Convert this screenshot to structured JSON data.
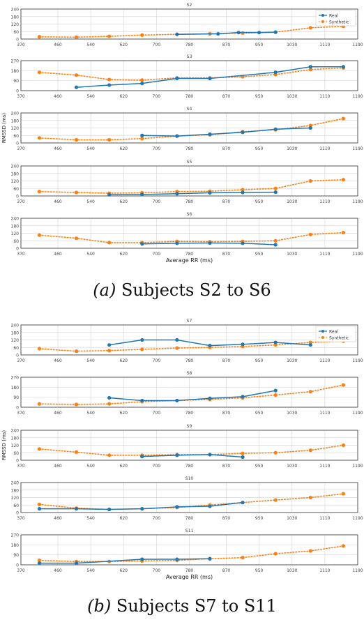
{
  "captions": {
    "a_label": "(a)",
    "a_text": "Subjects S2 to S6",
    "b_label": "(b)",
    "b_text": "Subjects S7 to S11"
  },
  "colors": {
    "real": "#1f77b4",
    "synthetic": "#ff7f0e",
    "grid": "#d9d9d9",
    "axis": "#333333"
  },
  "chart_data": [
    {
      "type": "line",
      "title": "S2",
      "xlabel": "",
      "ylabel": "",
      "xlim": [
        370,
        1190
      ],
      "ylim": [
        0,
        240
      ],
      "xticks": [
        370,
        460,
        540,
        620,
        700,
        780,
        870,
        950,
        1030,
        1110,
        1190
      ],
      "yticks": [
        0,
        60,
        120,
        180,
        240
      ],
      "grid": true,
      "legend": "top-right",
      "series": [
        {
          "name": "Real",
          "style": "solid",
          "x": [
            750,
            850,
            900,
            950,
            990
          ],
          "y": [
            38,
            42,
            52,
            52,
            55
          ]
        },
        {
          "name": "Synthetic",
          "style": "dotted",
          "x": [
            415,
            505,
            585,
            665,
            750,
            830,
            910,
            990,
            1075,
            1155
          ],
          "y": [
            18,
            15,
            22,
            32,
            38,
            42,
            48,
            55,
            90,
            102
          ]
        }
      ]
    },
    {
      "type": "line",
      "title": "S3",
      "xlabel": "",
      "ylabel": "",
      "xlim": [
        370,
        1190
      ],
      "ylim": [
        0,
        270
      ],
      "xticks": [
        370,
        460,
        540,
        620,
        700,
        780,
        870,
        950,
        1030,
        1110,
        1190
      ],
      "yticks": [
        0,
        90,
        180,
        270
      ],
      "grid": true,
      "legend": "",
      "series": [
        {
          "name": "Real",
          "style": "solid",
          "x": [
            505,
            585,
            665,
            750,
            830,
            990,
            1075,
            1155
          ],
          "y": [
            30,
            50,
            65,
            110,
            110,
            165,
            215,
            215
          ]
        },
        {
          "name": "Synthetic",
          "style": "dotted",
          "x": [
            415,
            505,
            585,
            665,
            750,
            830,
            910,
            990,
            1075,
            1155
          ],
          "y": [
            165,
            140,
            100,
            95,
            115,
            115,
            125,
            145,
            190,
            205
          ]
        }
      ]
    },
    {
      "type": "line",
      "title": "S4",
      "xlabel": "",
      "ylabel": "RMSSD (ms)",
      "xlim": [
        370,
        1190
      ],
      "ylim": [
        0,
        240
      ],
      "xticks": [
        370,
        460,
        540,
        620,
        700,
        780,
        870,
        950,
        1030,
        1110,
        1190
      ],
      "yticks": [
        0,
        60,
        120,
        180,
        240
      ],
      "grid": true,
      "legend": "",
      "series": [
        {
          "name": "Real",
          "style": "solid",
          "x": [
            665,
            750,
            830,
            910,
            990,
            1075
          ],
          "y": [
            60,
            55,
            70,
            85,
            110,
            120
          ]
        },
        {
          "name": "Synthetic",
          "style": "dotted",
          "x": [
            415,
            505,
            585,
            665,
            750,
            830,
            910,
            990,
            1075,
            1155
          ],
          "y": [
            40,
            25,
            25,
            35,
            55,
            65,
            90,
            105,
            140,
            195
          ]
        }
      ]
    },
    {
      "type": "line",
      "title": "S5",
      "xlabel": "",
      "ylabel": "",
      "xlim": [
        370,
        1190
      ],
      "ylim": [
        0,
        240
      ],
      "xticks": [
        370,
        460,
        540,
        620,
        700,
        780,
        870,
        950,
        1030,
        1110,
        1190
      ],
      "yticks": [
        0,
        60,
        120,
        180,
        240
      ],
      "grid": true,
      "legend": "",
      "series": [
        {
          "name": "Real",
          "style": "solid",
          "x": [
            585,
            665,
            750,
            830,
            910,
            990
          ],
          "y": [
            10,
            12,
            18,
            25,
            28,
            30
          ]
        },
        {
          "name": "Synthetic",
          "style": "dotted",
          "x": [
            415,
            505,
            585,
            665,
            750,
            830,
            910,
            990,
            1075,
            1155
          ],
          "y": [
            35,
            28,
            22,
            25,
            35,
            38,
            50,
            60,
            120,
            130
          ]
        }
      ]
    },
    {
      "type": "line",
      "title": "S6",
      "xlabel": "Average RR (ms)",
      "ylabel": "",
      "xlim": [
        370,
        1190
      ],
      "ylim": [
        0,
        240
      ],
      "xticks": [
        370,
        460,
        540,
        620,
        700,
        780,
        870,
        950,
        1030,
        1110,
        1190
      ],
      "yticks": [
        0,
        60,
        120,
        180,
        240
      ],
      "grid": true,
      "legend": "",
      "series": [
        {
          "name": "Real",
          "style": "solid",
          "x": [
            665,
            750,
            830,
            910,
            990
          ],
          "y": [
            35,
            40,
            42,
            40,
            28
          ]
        },
        {
          "name": "Synthetic",
          "style": "dotted",
          "x": [
            415,
            505,
            585,
            665,
            750,
            830,
            910,
            990,
            1075,
            1155
          ],
          "y": [
            105,
            80,
            45,
            45,
            55,
            52,
            55,
            60,
            110,
            125
          ]
        }
      ]
    },
    {
      "type": "line",
      "title": "S7",
      "xlabel": "",
      "ylabel": "",
      "xlim": [
        370,
        1190
      ],
      "ylim": [
        0,
        240
      ],
      "xticks": [
        370,
        460,
        540,
        620,
        700,
        780,
        870,
        950,
        1030,
        1110,
        1190
      ],
      "yticks": [
        0,
        60,
        120,
        180,
        240
      ],
      "grid": true,
      "legend": "top-right",
      "series": [
        {
          "name": "Real",
          "style": "solid",
          "x": [
            585,
            665,
            750,
            830,
            910,
            990,
            1075
          ],
          "y": [
            80,
            120,
            120,
            75,
            85,
            100,
            80
          ]
        },
        {
          "name": "Synthetic",
          "style": "dotted",
          "x": [
            415,
            505,
            585,
            665,
            750,
            830,
            910,
            990,
            1075,
            1155
          ],
          "y": [
            50,
            30,
            35,
            45,
            55,
            60,
            68,
            80,
            100,
            110
          ]
        }
      ]
    },
    {
      "type": "line",
      "title": "S8",
      "xlabel": "",
      "ylabel": "",
      "xlim": [
        370,
        1190
      ],
      "ylim": [
        0,
        270
      ],
      "xticks": [
        370,
        460,
        540,
        620,
        700,
        780,
        870,
        950,
        1030,
        1110,
        1190
      ],
      "yticks": [
        0,
        90,
        180,
        270
      ],
      "grid": true,
      "legend": "",
      "series": [
        {
          "name": "Real",
          "style": "solid",
          "x": [
            585,
            665,
            750,
            830,
            910,
            990
          ],
          "y": [
            85,
            60,
            60,
            80,
            95,
            150
          ]
        },
        {
          "name": "Synthetic",
          "style": "dotted",
          "x": [
            415,
            505,
            585,
            665,
            750,
            830,
            910,
            990,
            1075,
            1155
          ],
          "y": [
            30,
            25,
            30,
            50,
            60,
            70,
            85,
            110,
            140,
            200
          ]
        }
      ]
    },
    {
      "type": "line",
      "title": "S9",
      "xlabel": "",
      "ylabel": "RMSSD (ms)",
      "xlim": [
        370,
        1190
      ],
      "ylim": [
        0,
        240
      ],
      "xticks": [
        370,
        460,
        540,
        620,
        700,
        780,
        870,
        950,
        1030,
        1110,
        1190
      ],
      "yticks": [
        0,
        60,
        120,
        180,
        240
      ],
      "grid": true,
      "legend": "",
      "series": [
        {
          "name": "Real",
          "style": "solid",
          "x": [
            665,
            750,
            830,
            910
          ],
          "y": [
            30,
            40,
            45,
            25
          ]
        },
        {
          "name": "Synthetic",
          "style": "dotted",
          "x": [
            415,
            505,
            585,
            665,
            750,
            830,
            910,
            990,
            1075,
            1155
          ],
          "y": [
            90,
            65,
            40,
            40,
            45,
            45,
            55,
            60,
            80,
            120
          ]
        }
      ]
    },
    {
      "type": "line",
      "title": "S10",
      "xlabel": "",
      "ylabel": "",
      "xlim": [
        370,
        1190
      ],
      "ylim": [
        0,
        240
      ],
      "xticks": [
        370,
        460,
        540,
        620,
        700,
        780,
        870,
        950,
        1030,
        1110,
        1190
      ],
      "yticks": [
        0,
        60,
        120,
        180,
        240
      ],
      "grid": true,
      "legend": "",
      "series": [
        {
          "name": "Real",
          "style": "solid",
          "x": [
            415,
            505,
            585,
            665,
            750,
            830,
            910
          ],
          "y": [
            30,
            30,
            25,
            30,
            45,
            50,
            80
          ]
        },
        {
          "name": "Synthetic",
          "style": "dotted",
          "x": [
            415,
            505,
            585,
            665,
            750,
            830,
            910,
            990,
            1075,
            1155
          ],
          "y": [
            65,
            35,
            25,
            30,
            40,
            60,
            80,
            100,
            120,
            150
          ]
        }
      ]
    },
    {
      "type": "line",
      "title": "S11",
      "xlabel": "Average RR (ms)",
      "ylabel": "",
      "xlim": [
        370,
        1190
      ],
      "ylim": [
        0,
        270
      ],
      "xticks": [
        370,
        460,
        540,
        620,
        700,
        780,
        870,
        950,
        1030,
        1110,
        1190
      ],
      "yticks": [
        0,
        90,
        180,
        270
      ],
      "grid": true,
      "legend": "",
      "series": [
        {
          "name": "Real",
          "style": "solid",
          "x": [
            415,
            505,
            665,
            750,
            830
          ],
          "y": [
            15,
            15,
            50,
            50,
            55
          ]
        },
        {
          "name": "Synthetic",
          "style": "dotted",
          "x": [
            415,
            505,
            585,
            665,
            750,
            830,
            910,
            990,
            1075,
            1155
          ],
          "y": [
            40,
            30,
            30,
            35,
            40,
            55,
            65,
            100,
            125,
            170
          ]
        }
      ]
    }
  ]
}
